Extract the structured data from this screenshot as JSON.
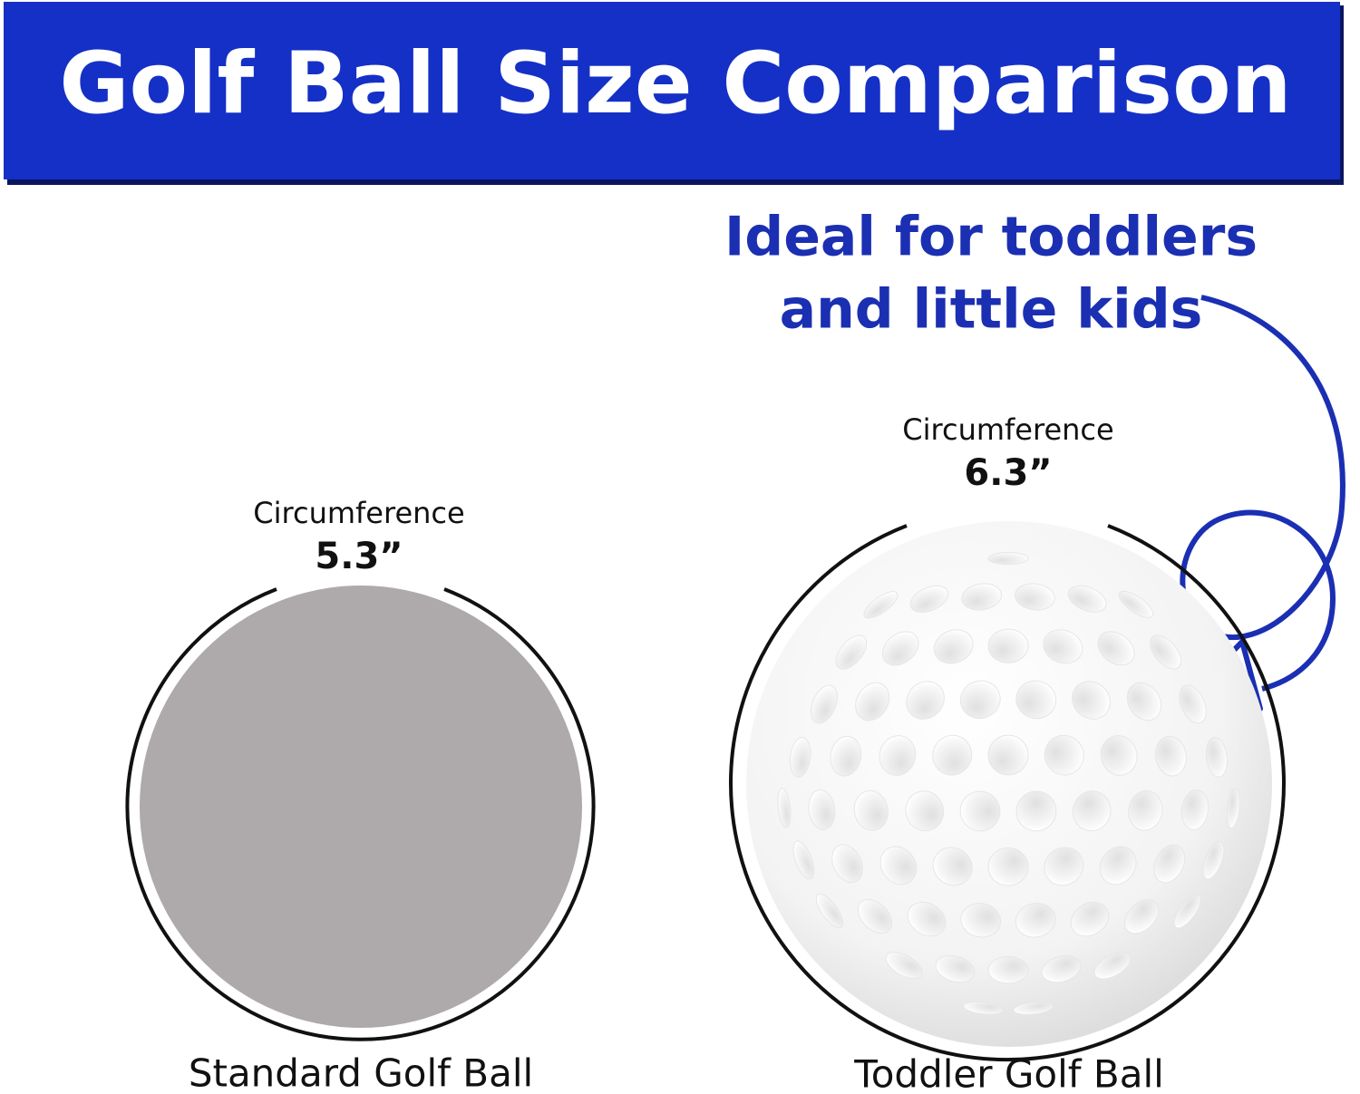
{
  "header": {
    "title": "Golf Ball Size Comparison"
  },
  "callout": {
    "lines": [
      "Ideal for toddlers",
      "and little kids"
    ]
  },
  "balls": [
    {
      "circumference_label": "Circumference",
      "circumference": "5.3”",
      "name": "Standard Golf Ball"
    },
    {
      "circumference_label": "Circumference",
      "circumference": "6.3”",
      "name": "Toddler Golf Ball"
    }
  ]
}
